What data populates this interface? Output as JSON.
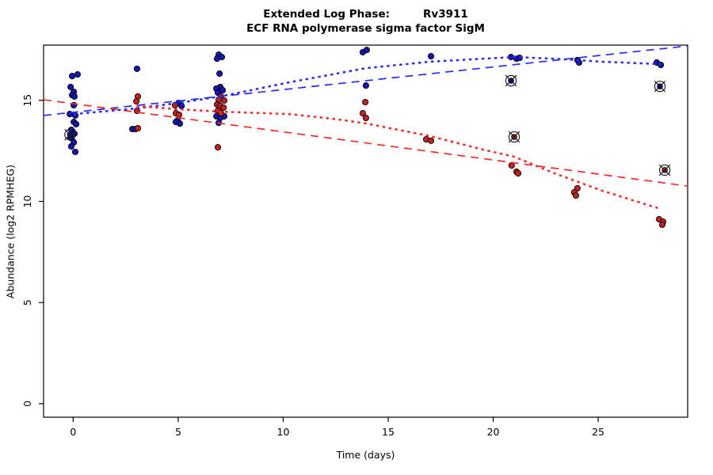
{
  "figure": {
    "title_prefix": "Extended Log Phase:",
    "title_gene": "Rv3911",
    "subtitle": "ECF RNA polymerase sigma factor SigM",
    "xlabel": "Time (days)",
    "ylabel": "Abundance (log2 RPMHEG)"
  },
  "colors": {
    "point_blue": "#1616b2",
    "point_red": "#c32222",
    "line_blue": "#2a2af5",
    "line_red": "#f52a2a",
    "marker_outline": "#111111",
    "axis": "#000000"
  },
  "chart_data": {
    "type": "scatter",
    "title": "Extended Log Phase: Rv3911",
    "subtitle": "ECF RNA polymerase sigma factor SigM",
    "xlabel": "Time (days)",
    "ylabel": "Abundance (log2 RPMHEG)",
    "xlim": [
      -1.41,
      29.26
    ],
    "ylim": [
      -0.67,
      17.73
    ],
    "xticks": [
      0,
      5,
      10,
      15,
      20,
      25
    ],
    "yticks": [
      0,
      5,
      10,
      15
    ],
    "grid": false,
    "legend": "none",
    "series": [
      {
        "name": "condition-blue",
        "color_key": "point_blue",
        "points": [
          [
            -0.05,
            16.2
          ],
          [
            0.21,
            16.28
          ],
          [
            -0.12,
            15.66
          ],
          [
            0.03,
            15.42
          ],
          [
            -0.05,
            15.26
          ],
          [
            0.06,
            15.19
          ],
          [
            0.03,
            14.76
          ],
          [
            -0.16,
            14.32
          ],
          [
            0.1,
            14.25
          ],
          [
            0.03,
            13.93
          ],
          [
            0.14,
            13.82
          ],
          [
            -0.09,
            13.54
          ],
          [
            0.06,
            13.35
          ],
          [
            -0.12,
            13.15
          ],
          [
            0.03,
            12.92
          ],
          [
            -0.09,
            12.72
          ],
          [
            0.1,
            12.45
          ],
          [
            3.04,
            16.56
          ],
          [
            2.82,
            13.58
          ],
          [
            2.97,
            13.58
          ],
          [
            5.01,
            14.87
          ],
          [
            5.16,
            14.72
          ],
          [
            4.97,
            14.01
          ],
          [
            4.89,
            13.93
          ],
          [
            5.08,
            13.85
          ],
          [
            6.93,
            17.26
          ],
          [
            7.08,
            17.14
          ],
          [
            6.85,
            17.06
          ],
          [
            6.97,
            16.32
          ],
          [
            7.0,
            15.66
          ],
          [
            6.82,
            15.58
          ],
          [
            7.12,
            15.5
          ],
          [
            6.89,
            15.38
          ],
          [
            6.82,
            14.21
          ],
          [
            7.19,
            14.21
          ],
          [
            7.0,
            14.13
          ],
          [
            6.93,
            13.89
          ],
          [
            13.79,
            17.38
          ],
          [
            13.98,
            17.49
          ],
          [
            13.94,
            15.73
          ],
          [
            17.04,
            17.18
          ],
          [
            20.85,
            17.14
          ],
          [
            21.11,
            17.06
          ],
          [
            21.26,
            17.1
          ],
          [
            24.01,
            16.99
          ],
          [
            24.09,
            16.87
          ],
          [
            27.79,
            16.87
          ],
          [
            27.98,
            16.75
          ]
        ]
      },
      {
        "name": "condition-red",
        "color_key": "point_red",
        "points": [
          [
            3.08,
            15.19
          ],
          [
            3.01,
            14.95
          ],
          [
            3.04,
            14.48
          ],
          [
            3.08,
            13.62
          ],
          [
            4.85,
            14.76
          ],
          [
            4.89,
            14.36
          ],
          [
            5.04,
            14.29
          ],
          [
            7.04,
            15.19
          ],
          [
            6.93,
            15.03
          ],
          [
            7.19,
            14.99
          ],
          [
            6.85,
            14.79
          ],
          [
            7.0,
            14.72
          ],
          [
            7.16,
            14.64
          ],
          [
            6.89,
            14.48
          ],
          [
            7.04,
            14.36
          ],
          [
            6.89,
            12.68
          ],
          [
            13.91,
            14.91
          ],
          [
            13.79,
            14.36
          ],
          [
            13.94,
            14.13
          ],
          [
            16.81,
            13.07
          ],
          [
            17.04,
            13.0
          ],
          [
            20.88,
            11.78
          ],
          [
            21.11,
            11.47
          ],
          [
            21.19,
            11.39
          ],
          [
            24.01,
            10.65
          ],
          [
            23.86,
            10.45
          ],
          [
            23.94,
            10.29
          ],
          [
            27.9,
            9.12
          ],
          [
            28.09,
            9.0
          ],
          [
            28.05,
            8.85
          ]
        ]
      }
    ],
    "flagged_points": [
      {
        "x": -0.15,
        "y": 13.3,
        "series": "blue"
      },
      {
        "x": 20.85,
        "y": 15.97,
        "series": "blue"
      },
      {
        "x": 21.0,
        "y": 13.19,
        "series": "red"
      },
      {
        "x": 27.94,
        "y": 15.69,
        "series": "blue"
      },
      {
        "x": 28.17,
        "y": 11.55,
        "series": "red"
      }
    ],
    "trend_lines": [
      {
        "name": "blue-linear-fit",
        "style": "dashed",
        "series": "blue",
        "points": [
          [
            -1.41,
            14.25
          ],
          [
            29.26,
            17.69
          ]
        ]
      },
      {
        "name": "red-linear-fit",
        "style": "dashed",
        "series": "red",
        "points": [
          [
            -1.41,
            15.03
          ],
          [
            29.26,
            10.76
          ]
        ]
      },
      {
        "name": "blue-smooth-fit",
        "style": "dotted",
        "series": "blue",
        "points": [
          [
            0.03,
            14.32
          ],
          [
            3.01,
            14.6
          ],
          [
            5.01,
            14.87
          ],
          [
            7.0,
            15.19
          ],
          [
            10.29,
            15.89
          ],
          [
            13.94,
            16.59
          ],
          [
            17.0,
            16.91
          ],
          [
            19.53,
            17.06
          ],
          [
            21.0,
            17.14
          ],
          [
            22.92,
            17.06
          ],
          [
            25.19,
            16.91
          ],
          [
            27.98,
            16.79
          ]
        ]
      },
      {
        "name": "red-smooth-fit",
        "style": "dotted",
        "series": "red",
        "points": [
          [
            3.01,
            14.72
          ],
          [
            5.01,
            14.56
          ],
          [
            7.0,
            14.44
          ],
          [
            10.29,
            14.32
          ],
          [
            12.36,
            14.09
          ],
          [
            13.94,
            13.86
          ],
          [
            17.0,
            13.23
          ],
          [
            19.53,
            12.56
          ],
          [
            21.0,
            12.21
          ],
          [
            22.92,
            11.39
          ],
          [
            25.19,
            10.53
          ],
          [
            27.98,
            9.63
          ]
        ]
      }
    ]
  }
}
